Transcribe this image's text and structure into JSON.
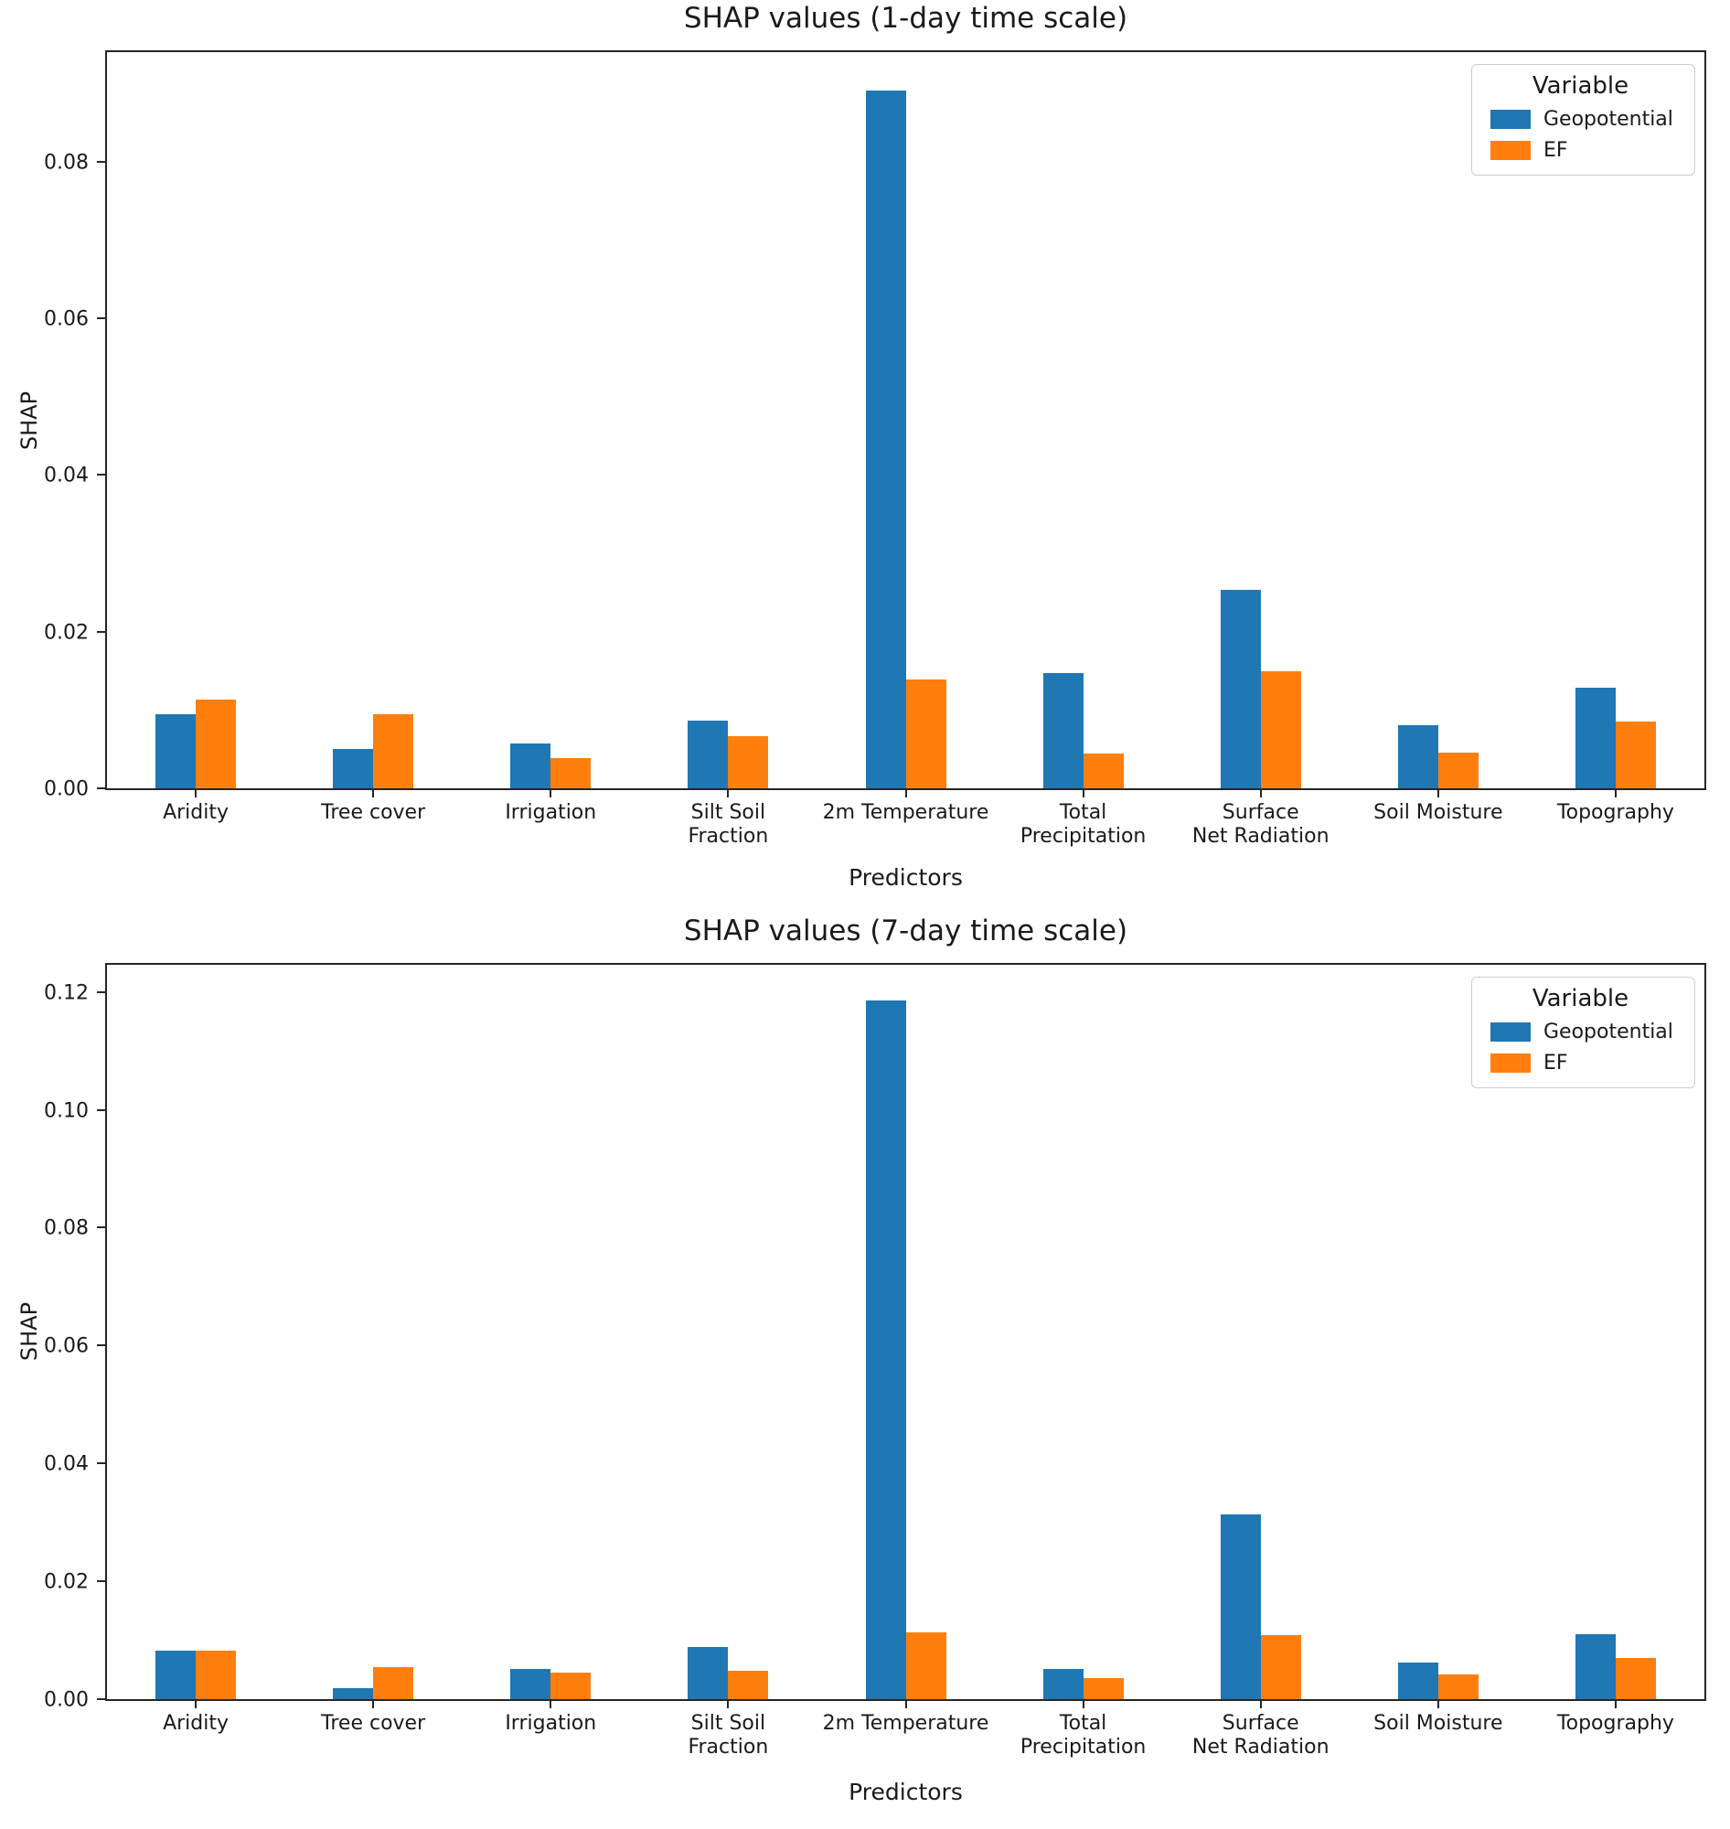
{
  "colors": {
    "geopotential": "#1f77b4",
    "ef": "#ff7f0e",
    "spine": "#262626",
    "text": "#1a1a1a",
    "legend_border": "#cccccc"
  },
  "chart_data": [
    {
      "type": "bar",
      "title": "SHAP values (1-day time scale)",
      "xlabel": "Predictors",
      "ylabel": "SHAP",
      "legend_title": "Variable",
      "legend_position": "upper right",
      "grid": false,
      "ylim": [
        0,
        0.094
      ],
      "yticks": [
        0.0,
        0.02,
        0.04,
        0.06,
        0.08
      ],
      "categories": [
        "Aridity",
        "Tree cover",
        "Irrigation",
        "Silt Soil\nFraction",
        "2m Temperature",
        "Total\nPrecipitation",
        "Surface\nNet Radiation",
        "Soil Moisture",
        "Topography"
      ],
      "series": [
        {
          "name": "Geopotential",
          "color_key": "geopotential",
          "values": [
            0.0095,
            0.005,
            0.0057,
            0.0087,
            0.0891,
            0.0147,
            0.0253,
            0.0081,
            0.0128
          ]
        },
        {
          "name": "EF",
          "color_key": "ef",
          "values": [
            0.0113,
            0.0095,
            0.0038,
            0.0066,
            0.0139,
            0.0044,
            0.015,
            0.0046,
            0.0085
          ]
        }
      ]
    },
    {
      "type": "bar",
      "title": "SHAP values (7-day time scale)",
      "xlabel": "Predictors",
      "ylabel": "SHAP",
      "legend_title": "Variable",
      "legend_position": "upper right",
      "grid": false,
      "ylim": [
        0,
        0.1246
      ],
      "yticks": [
        0.0,
        0.02,
        0.04,
        0.06,
        0.08,
        0.1,
        0.12
      ],
      "categories": [
        "Aridity",
        "Tree cover",
        "Irrigation",
        "Silt Soil\nFraction",
        "2m Temperature",
        "Total\nPrecipitation",
        "Surface\nNet Radiation",
        "Soil Moisture",
        "Topography"
      ],
      "series": [
        {
          "name": "Geopotential",
          "color_key": "geopotential",
          "values": [
            0.0083,
            0.0019,
            0.0052,
            0.0089,
            0.1186,
            0.0052,
            0.0313,
            0.0062,
            0.011
          ]
        },
        {
          "name": "EF",
          "color_key": "ef",
          "values": [
            0.0083,
            0.0055,
            0.0045,
            0.0048,
            0.0113,
            0.0035,
            0.0109,
            0.0042,
            0.007
          ]
        }
      ]
    }
  ]
}
